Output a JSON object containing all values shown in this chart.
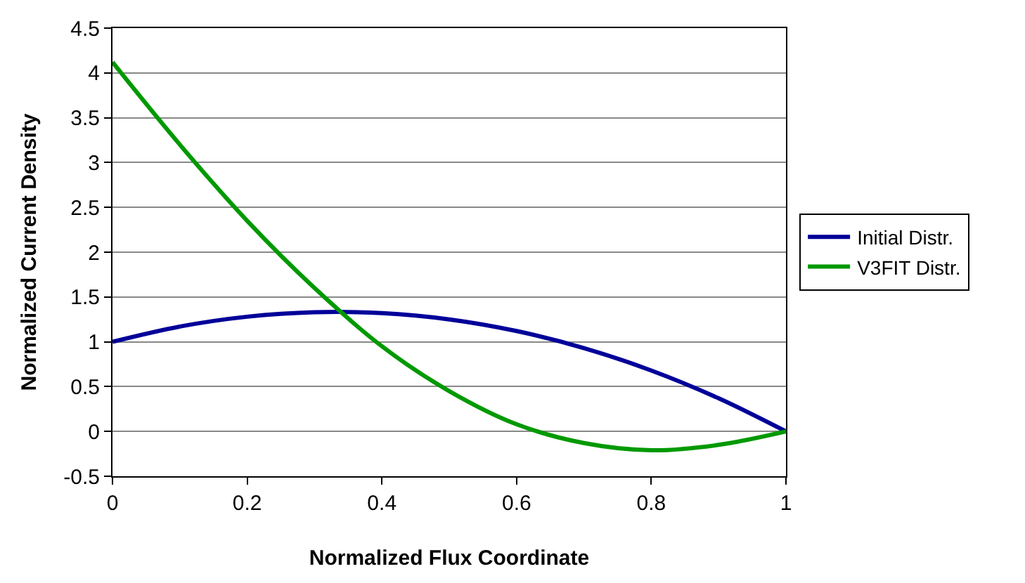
{
  "chart_data": {
    "type": "line",
    "xlabel": "Normalized Flux Coordinate",
    "ylabel": "Normalized Current Density",
    "x": [
      0,
      0.1,
      0.2,
      0.3,
      0.4,
      0.5,
      0.6,
      0.7,
      0.8,
      0.9,
      1
    ],
    "series": [
      {
        "name": "Initial Distr.",
        "color": "#000099",
        "values": [
          1,
          1.17,
          1.28,
          1.33,
          1.32,
          1.25,
          1.12,
          0.93,
          0.68,
          0.37,
          0
        ]
      },
      {
        "name": "V3FIT Distr.",
        "color": "#009900",
        "values": [
          4.12,
          3.2,
          2.35,
          1.6,
          0.95,
          0.45,
          0.08,
          -0.13,
          -0.21,
          -0.15,
          0
        ]
      }
    ],
    "xlim": [
      0,
      1
    ],
    "xticks": [
      0,
      0.2,
      0.4,
      0.6,
      0.8,
      1
    ],
    "ylim": [
      -0.5,
      4.5
    ],
    "yticks": [
      -0.5,
      0,
      0.5,
      1,
      1.5,
      2,
      2.5,
      3,
      3.5,
      4,
      4.5
    ],
    "grid": "y",
    "legend": "right",
    "marker": "none",
    "line_style": "solid"
  }
}
